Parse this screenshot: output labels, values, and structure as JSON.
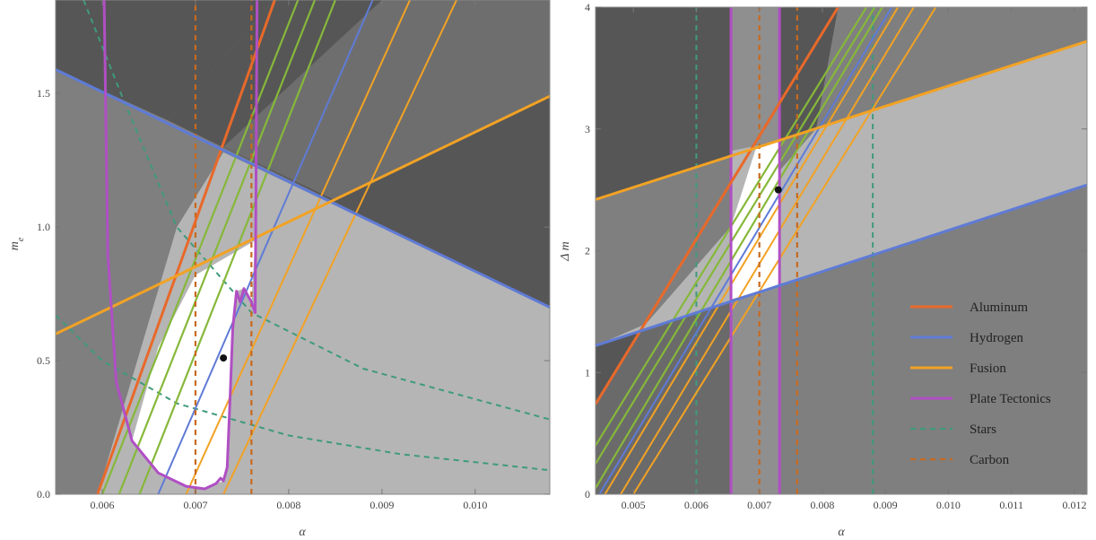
{
  "chart_data": [
    {
      "type": "region-plot",
      "xlabel": "α",
      "ylabel": "m_e",
      "xlim": [
        0.0055,
        0.0108
      ],
      "ylim": [
        0,
        1.85
      ],
      "xticks": [
        "0.006",
        "0.007",
        "0.008",
        "0.009",
        "0.010"
      ],
      "yticks": [
        "0.0",
        "0.5",
        "1.0",
        "1.5"
      ],
      "marker": {
        "x": 0.0073,
        "y": 0.51
      },
      "colors": {
        "aluminum": "#e8692a",
        "hydrogen": "#5f7bd6",
        "fusion": "#f2a224",
        "plate_tectonics": "#b04fc4",
        "stars": "#3f9a7c",
        "carbon": "#c8691f",
        "green_lines": "#86b83a",
        "region_dark": "#565656",
        "region_mid": "#7f7f7f",
        "region_light": "#b5b5b5",
        "region_white": "#ffffff"
      },
      "lines": {
        "aluminum": [
          [
            0.00595,
            0.0
          ],
          [
            0.00785,
            1.85
          ]
        ],
        "hydrogen": [
          [
            0.0055,
            1.59
          ],
          [
            0.0108,
            0.7
          ]
        ],
        "fusion": [
          [
            0.0055,
            0.6
          ],
          [
            0.0108,
            1.49
          ]
        ],
        "carbon": [
          0.007,
          0.0076
        ],
        "green": [
          [
            [
              0.006,
              0.0
            ],
            [
              0.0081,
              1.85
            ]
          ],
          [
            [
              0.00618,
              0.0
            ],
            [
              0.00828,
              1.85
            ]
          ],
          [
            [
              0.0064,
              0.0
            ],
            [
              0.0085,
              1.85
            ]
          ]
        ],
        "blue_parallel": [
          [
            0.0066,
            0.0
          ],
          [
            0.0089,
            1.85
          ]
        ],
        "fusion_parallel": [
          [
            [
              0.0069,
              0.0
            ],
            [
              0.0093,
              1.85
            ]
          ],
          [
            [
              0.0073,
              0.0
            ],
            [
              0.0098,
              1.85
            ]
          ]
        ],
        "stars": [
          [
            [
              0.0058,
              1.85
            ],
            [
              0.0062,
              1.5
            ],
            [
              0.0068,
              1.0
            ],
            [
              0.0076,
              0.68
            ],
            [
              0.0088,
              0.47
            ],
            [
              0.0108,
              0.28
            ]
          ],
          [
            [
              0.0055,
              0.67
            ],
            [
              0.006,
              0.5
            ],
            [
              0.0068,
              0.34
            ],
            [
              0.008,
              0.22
            ],
            [
              0.0092,
              0.15
            ],
            [
              0.0108,
              0.09
            ]
          ]
        ],
        "plate_tectonics": [
          [
            0.00602,
            1.85
          ],
          [
            0.00606,
            0.9
          ],
          [
            0.00615,
            0.42
          ],
          [
            0.00632,
            0.2
          ],
          [
            0.0066,
            0.08
          ],
          [
            0.0069,
            0.03
          ],
          [
            0.0071,
            0.02
          ],
          [
            0.00722,
            0.04
          ],
          [
            0.00727,
            0.06
          ],
          [
            0.0073,
            0.05
          ],
          [
            0.00734,
            0.1
          ],
          [
            0.00737,
            0.35
          ],
          [
            0.0074,
            0.62
          ],
          [
            0.00744,
            0.76
          ],
          [
            0.00748,
            0.72
          ],
          [
            0.00752,
            0.77
          ],
          [
            0.0076,
            0.72
          ],
          [
            0.00764,
            0.68
          ],
          [
            0.00765,
            1.2
          ],
          [
            0.00766,
            1.85
          ]
        ]
      }
    },
    {
      "type": "region-plot",
      "xlabel": "α",
      "ylabel": "Δ m",
      "xlim": [
        0.0044,
        0.0122
      ],
      "ylim": [
        0,
        4
      ],
      "xticks": [
        "0.005",
        "0.006",
        "0.007",
        "0.008",
        "0.009",
        "0.010",
        "0.011",
        "0.012"
      ],
      "yticks": [
        "0",
        "1",
        "2",
        "3",
        "4"
      ],
      "marker": {
        "x": 0.0073,
        "y": 2.5
      },
      "lines": {
        "aluminum": [
          [
            0.0044,
            0.74
          ],
          [
            0.00825,
            4.0
          ]
        ],
        "hydrogen": [
          [
            0.0044,
            1.22
          ],
          [
            0.0122,
            2.54
          ]
        ],
        "fusion": [
          [
            0.0044,
            2.42
          ],
          [
            0.0122,
            3.72
          ]
        ],
        "plate_tectonics": [
          0.00655,
          0.00732
        ],
        "carbon": [
          0.007,
          0.0076
        ],
        "stars": [
          0.006,
          0.0088
        ],
        "green": [
          [
            [
              0.0044,
              0.4
            ],
            [
              0.0087,
              4.0
            ]
          ],
          [
            [
              0.0044,
              0.25
            ],
            [
              0.00883,
              4.0
            ]
          ],
          [
            [
              0.0044,
              0.05
            ],
            [
              0.00895,
              4.0
            ]
          ]
        ],
        "blue_parallel": [
          [
            0.00446,
            0.0
          ],
          [
            0.0091,
            4.0
          ]
        ],
        "fusion_parallel": [
          [
            [
              0.00455,
              0.0
            ],
            [
              0.0092,
              4.0
            ]
          ],
          [
            [
              0.0048,
              0.0
            ],
            [
              0.00945,
              4.0
            ]
          ],
          [
            [
              0.005,
              0.0
            ],
            [
              0.0098,
              4.0
            ]
          ]
        ]
      },
      "legend": {
        "position": "bottom-right",
        "entries": [
          {
            "label": "Aluminum",
            "color": "#e8692a",
            "style": "solid"
          },
          {
            "label": "Hydrogen",
            "color": "#5f7bd6",
            "style": "solid"
          },
          {
            "label": "Fusion",
            "color": "#f2a224",
            "style": "solid"
          },
          {
            "label": "Plate Tectonics",
            "color": "#b04fc4",
            "style": "solid"
          },
          {
            "label": "Stars",
            "color": "#3f9a7c",
            "style": "dashed"
          },
          {
            "label": "Carbon",
            "color": "#c8691f",
            "style": "dashed"
          }
        ]
      }
    }
  ]
}
